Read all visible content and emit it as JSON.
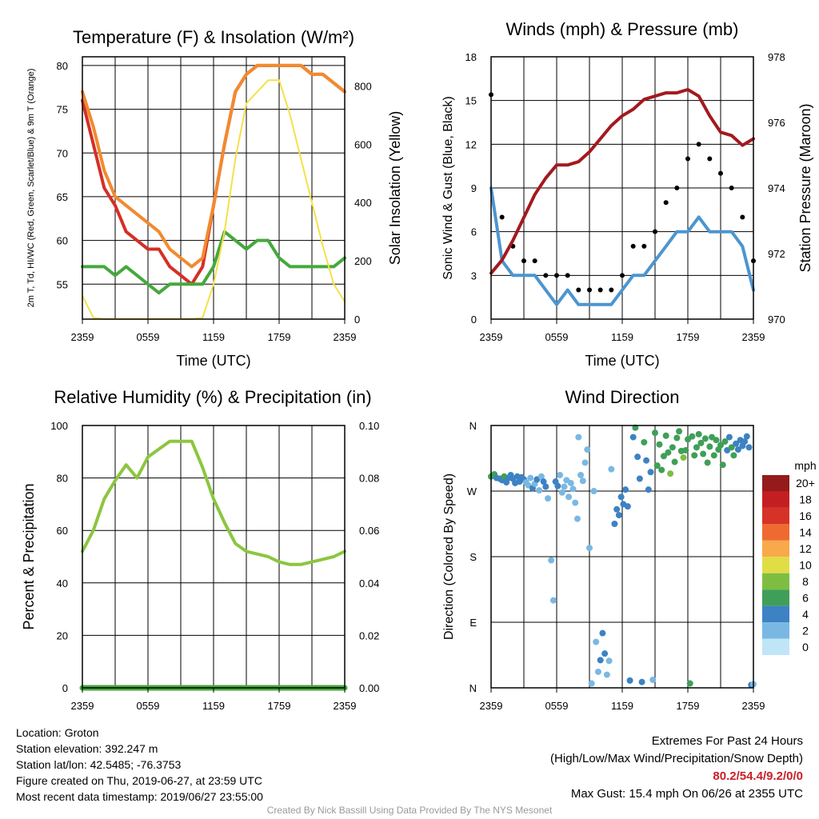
{
  "colors": {
    "red": "#d42f26",
    "orange": "#f28a2e",
    "green": "#45a83d",
    "yellow": "#f5e04a",
    "wind": "#4c95d0",
    "gust": "#000000",
    "pressure": "#a3191f",
    "rh": "#8cc63f",
    "precip": "#45a83d"
  },
  "wind_speed_colors": [
    "#bfe5f6",
    "#7ab8e3",
    "#3d82c3",
    "#3f9f58",
    "#7fbd42",
    "#e0dd45",
    "#f8a94a",
    "#ef6a30",
    "#d73227",
    "#c51e22",
    "#951a1b"
  ],
  "x_ticks": [
    "2359",
    "0559",
    "1159",
    "1759",
    "2359"
  ],
  "chart_data": [
    {
      "type": "line",
      "title": "Temperature (F) & Insolation (W/m²)",
      "xlabel": "Time (UTC)",
      "ylabel": "2m T, Td, HI/WC (Red, Green, Scarlet/Blue) & 9m T (Orange)",
      "ylabel2": "Solar Insolation (Yellow)",
      "x_range_hours": [
        0,
        24
      ],
      "ylim": [
        51,
        81
      ],
      "yticks": [
        55,
        60,
        65,
        70,
        75,
        80
      ],
      "ylim2": [
        0,
        900
      ],
      "yticks2": [
        0,
        200,
        400,
        600,
        800
      ],
      "x": [
        0,
        1,
        2,
        3,
        4,
        5,
        6,
        7,
        8,
        9,
        10,
        11,
        12,
        13,
        14,
        15,
        16,
        17,
        18,
        19,
        20,
        21,
        22,
        23,
        24
      ],
      "series": [
        {
          "name": "2m T",
          "color": "red",
          "axis": "left",
          "values": [
            76,
            71,
            66,
            64,
            61,
            60,
            59,
            59,
            57,
            56,
            55,
            57,
            64,
            71,
            77,
            79,
            80,
            80,
            80,
            80,
            80,
            79,
            79,
            78,
            77
          ]
        },
        {
          "name": "9m T",
          "color": "orange",
          "axis": "left",
          "values": [
            77,
            73,
            68,
            65,
            64,
            63,
            62,
            61,
            59,
            58,
            57,
            58,
            64,
            71,
            77,
            79,
            80,
            80,
            80,
            80,
            80,
            79,
            79,
            78,
            77
          ]
        },
        {
          "name": "Td",
          "color": "green",
          "axis": "left",
          "values": [
            57,
            57,
            57,
            56,
            57,
            56,
            55,
            54,
            55,
            55,
            55,
            55,
            57,
            61,
            60,
            59,
            60,
            60,
            58,
            57,
            57,
            57,
            57,
            57,
            58
          ]
        },
        {
          "name": "Solar Insolation",
          "color": "yellow",
          "axis": "right",
          "values": [
            80,
            5,
            0,
            0,
            0,
            0,
            0,
            0,
            0,
            0,
            0,
            5,
            120,
            300,
            550,
            740,
            780,
            820,
            820,
            700,
            550,
            400,
            250,
            120,
            60
          ]
        }
      ]
    },
    {
      "type": "line",
      "title": "Winds (mph) & Pressure (mb)",
      "xlabel": "Time (UTC)",
      "ylabel": "Sonic Wind & Gust (Blue, Black)",
      "ylabel2": "Station Pressure (Maroon)",
      "ylim": [
        0,
        18
      ],
      "yticks": [
        0,
        3,
        6,
        9,
        12,
        15,
        18
      ],
      "ylim2": [
        970,
        978
      ],
      "yticks2": [
        970,
        972,
        974,
        976,
        978
      ],
      "x": [
        0,
        1,
        2,
        3,
        4,
        5,
        6,
        7,
        8,
        9,
        10,
        11,
        12,
        13,
        14,
        15,
        16,
        17,
        18,
        19,
        20,
        21,
        22,
        23,
        24
      ],
      "series": [
        {
          "name": "Wind",
          "color": "wind",
          "axis": "left",
          "values": [
            9,
            4,
            3,
            3,
            3,
            2,
            1,
            2,
            1,
            1,
            1,
            1,
            2,
            3,
            3,
            4,
            5,
            6,
            6,
            7,
            6,
            6,
            6,
            5,
            2
          ]
        },
        {
          "name": "Gust",
          "color": "gust",
          "axis": "left",
          "type": "scatter",
          "values": [
            15.4,
            7,
            5,
            4,
            4,
            3,
            3,
            3,
            2,
            2,
            2,
            2,
            3,
            5,
            5,
            6,
            8,
            9,
            11,
            12,
            11,
            10,
            9,
            7,
            4
          ]
        },
        {
          "name": "Station Pressure",
          "color": "pressure",
          "axis": "right",
          "values": [
            971.4,
            971.8,
            972.4,
            973.1,
            973.8,
            974.3,
            974.7,
            974.7,
            974.8,
            975.1,
            975.5,
            975.9,
            976.2,
            976.4,
            976.7,
            976.8,
            976.9,
            976.9,
            977.0,
            976.8,
            976.2,
            975.7,
            975.6,
            975.3,
            975.5
          ]
        }
      ]
    },
    {
      "type": "line",
      "title": "Relative Humidity (%) & Precipitation (in)",
      "ylabel": "Percent & Precipitation",
      "ylim": [
        0,
        100
      ],
      "yticks": [
        0,
        20,
        40,
        60,
        80,
        100
      ],
      "ylim2": [
        0,
        0.1
      ],
      "yticks2": [
        "0.00",
        "0.02",
        "0.04",
        "0.06",
        "0.08",
        "0.10"
      ],
      "x": [
        0,
        1,
        2,
        3,
        4,
        5,
        6,
        7,
        8,
        9,
        10,
        11,
        12,
        13,
        14,
        15,
        16,
        17,
        18,
        19,
        20,
        21,
        22,
        23,
        24
      ],
      "series": [
        {
          "name": "Relative Humidity",
          "color": "rh",
          "axis": "left",
          "values": [
            52,
            60,
            72,
            79,
            85,
            80,
            88,
            91,
            94,
            94,
            94,
            84,
            72,
            63,
            55,
            52,
            51,
            50,
            48,
            47,
            47,
            48,
            49,
            50,
            52
          ]
        },
        {
          "name": "Precipitation",
          "color": "precip",
          "axis": "right",
          "values": [
            0,
            0,
            0,
            0,
            0,
            0,
            0,
            0,
            0,
            0,
            0,
            0,
            0,
            0,
            0,
            0,
            0,
            0,
            0,
            0,
            0,
            0,
            0,
            0,
            0
          ]
        }
      ]
    },
    {
      "type": "scatter",
      "title": "Wind Direction",
      "ylabel": "Direction (Colored By Speed)",
      "y_labels": [
        "N",
        "E",
        "S",
        "W",
        "N"
      ],
      "colorbar_title": "mph",
      "colorbar_labels": [
        "20+",
        "18",
        "16",
        "14",
        "12",
        "10",
        "8",
        "6",
        "4",
        "2",
        "0"
      ],
      "points": [
        [
          0.0,
          290,
          5
        ],
        [
          0.3,
          293,
          5
        ],
        [
          0.5,
          288,
          4
        ],
        [
          0.8,
          287,
          4
        ],
        [
          1.0,
          285,
          4
        ],
        [
          1.2,
          290,
          5
        ],
        [
          1.4,
          282,
          3
        ],
        [
          1.6,
          288,
          4
        ],
        [
          1.8,
          292,
          4
        ],
        [
          2.0,
          287,
          3
        ],
        [
          2.2,
          281,
          3
        ],
        [
          2.4,
          290,
          3
        ],
        [
          2.6,
          283,
          4
        ],
        [
          2.8,
          289,
          4
        ],
        [
          3.0,
          286,
          3
        ],
        [
          3.2,
          282,
          2
        ],
        [
          3.4,
          278,
          1
        ],
        [
          3.6,
          288,
          2
        ],
        [
          3.8,
          274,
          3
        ],
        [
          4.0,
          280,
          2
        ],
        [
          4.2,
          286,
          3
        ],
        [
          4.4,
          271,
          2
        ],
        [
          4.6,
          290,
          2
        ],
        [
          4.8,
          283,
          3
        ],
        [
          5.0,
          276,
          3
        ],
        [
          5.2,
          260,
          1
        ],
        [
          5.5,
          175,
          1
        ],
        [
          5.7,
          120,
          1
        ],
        [
          5.9,
          283,
          3
        ],
        [
          6.1,
          277,
          3
        ],
        [
          6.3,
          292,
          2
        ],
        [
          6.5,
          268,
          2
        ],
        [
          6.7,
          276,
          2
        ],
        [
          6.9,
          285,
          2
        ],
        [
          7.1,
          262,
          2
        ],
        [
          7.3,
          281,
          2
        ],
        [
          7.5,
          273,
          1
        ],
        [
          7.7,
          254,
          1
        ],
        [
          7.9,
          232,
          1
        ],
        [
          8.0,
          344,
          1
        ],
        [
          8.2,
          292,
          1
        ],
        [
          8.4,
          284,
          1
        ],
        [
          8.6,
          309,
          1
        ],
        [
          8.8,
          327,
          1
        ],
        [
          9.0,
          192,
          1
        ],
        [
          9.2,
          6,
          1
        ],
        [
          9.4,
          270,
          1
        ],
        [
          9.6,
          63,
          2
        ],
        [
          9.8,
          22,
          1
        ],
        [
          10.0,
          38,
          3
        ],
        [
          10.2,
          75,
          4
        ],
        [
          10.4,
          47,
          3
        ],
        [
          10.6,
          18,
          2
        ],
        [
          10.8,
          37,
          2
        ],
        [
          11.0,
          300,
          2
        ],
        [
          11.3,
          225,
          3
        ],
        [
          11.5,
          245,
          4
        ],
        [
          11.7,
          237,
          3
        ],
        [
          11.9,
          262,
          3
        ],
        [
          12.1,
          252,
          4
        ],
        [
          12.3,
          272,
          3
        ],
        [
          12.5,
          249,
          3
        ],
        [
          12.7,
          10,
          4
        ],
        [
          13.0,
          344,
          4
        ],
        [
          13.2,
          357,
          5
        ],
        [
          13.4,
          317,
          4
        ],
        [
          13.6,
          287,
          4
        ],
        [
          13.8,
          8,
          4
        ],
        [
          14.0,
          337,
          5
        ],
        [
          14.2,
          312,
          4
        ],
        [
          14.4,
          272,
          3
        ],
        [
          14.6,
          296,
          3
        ],
        [
          14.8,
          11,
          2
        ],
        [
          15.0,
          350,
          5
        ],
        [
          15.2,
          305,
          6
        ],
        [
          15.4,
          334,
          6
        ],
        [
          15.6,
          299,
          6
        ],
        [
          15.8,
          318,
          6
        ],
        [
          16.0,
          346,
          6
        ],
        [
          16.2,
          323,
          6
        ],
        [
          16.4,
          294,
          7
        ],
        [
          16.6,
          330,
          5
        ],
        [
          16.8,
          310,
          6
        ],
        [
          17.0,
          343,
          6
        ],
        [
          17.2,
          352,
          6
        ],
        [
          17.4,
          325,
          6
        ],
        [
          17.6,
          316,
          7
        ],
        [
          17.8,
          326,
          6
        ],
        [
          18.0,
          341,
          5
        ],
        [
          18.2,
          6,
          6
        ],
        [
          18.4,
          345,
          5
        ],
        [
          18.6,
          319,
          6
        ],
        [
          18.8,
          330,
          6
        ],
        [
          19.0,
          348,
          5
        ],
        [
          19.2,
          336,
          6
        ],
        [
          19.4,
          321,
          6
        ],
        [
          19.6,
          342,
          6
        ],
        [
          19.8,
          309,
          5
        ],
        [
          20.0,
          331,
          6
        ],
        [
          20.2,
          344,
          5
        ],
        [
          20.4,
          319,
          6
        ],
        [
          20.6,
          340,
          5
        ],
        [
          20.8,
          327,
          6
        ],
        [
          21.0,
          333,
          5
        ],
        [
          21.2,
          306,
          6
        ],
        [
          21.4,
          338,
          5
        ],
        [
          21.6,
          326,
          4
        ],
        [
          21.8,
          344,
          4
        ],
        [
          22.0,
          330,
          5
        ],
        [
          22.2,
          319,
          5
        ],
        [
          22.4,
          335,
          4
        ],
        [
          22.6,
          327,
          4
        ],
        [
          22.8,
          340,
          4
        ],
        [
          23.0,
          332,
          4
        ],
        [
          23.2,
          338,
          3
        ],
        [
          23.4,
          345,
          3
        ],
        [
          23.6,
          330,
          4
        ],
        [
          23.8,
          4,
          3
        ],
        [
          24.0,
          5,
          2
        ]
      ]
    }
  ],
  "footer": {
    "location": "Location: Groton",
    "elevation": "Station elevation: 392.247 m",
    "latlon": "Station lat/lon: 42.5485; -76.3753",
    "created": "Figure created on Thu, 2019-06-27, at 23:59 UTC",
    "recent": "Most recent data timestamp: 2019/06/27 23:55:00",
    "extremes_title": "Extremes For Past 24 Hours",
    "extremes_subtitle": "(High/Low/Max Wind/Precipitation/Snow Depth)",
    "extremes_values": "80.2/54.4/9.2/0/0",
    "max_gust": "Max Gust: 15.4 mph On 06/26 at 2355 UTC",
    "credit": "Created By Nick Bassill Using Data Provided By The NYS Mesonet"
  }
}
